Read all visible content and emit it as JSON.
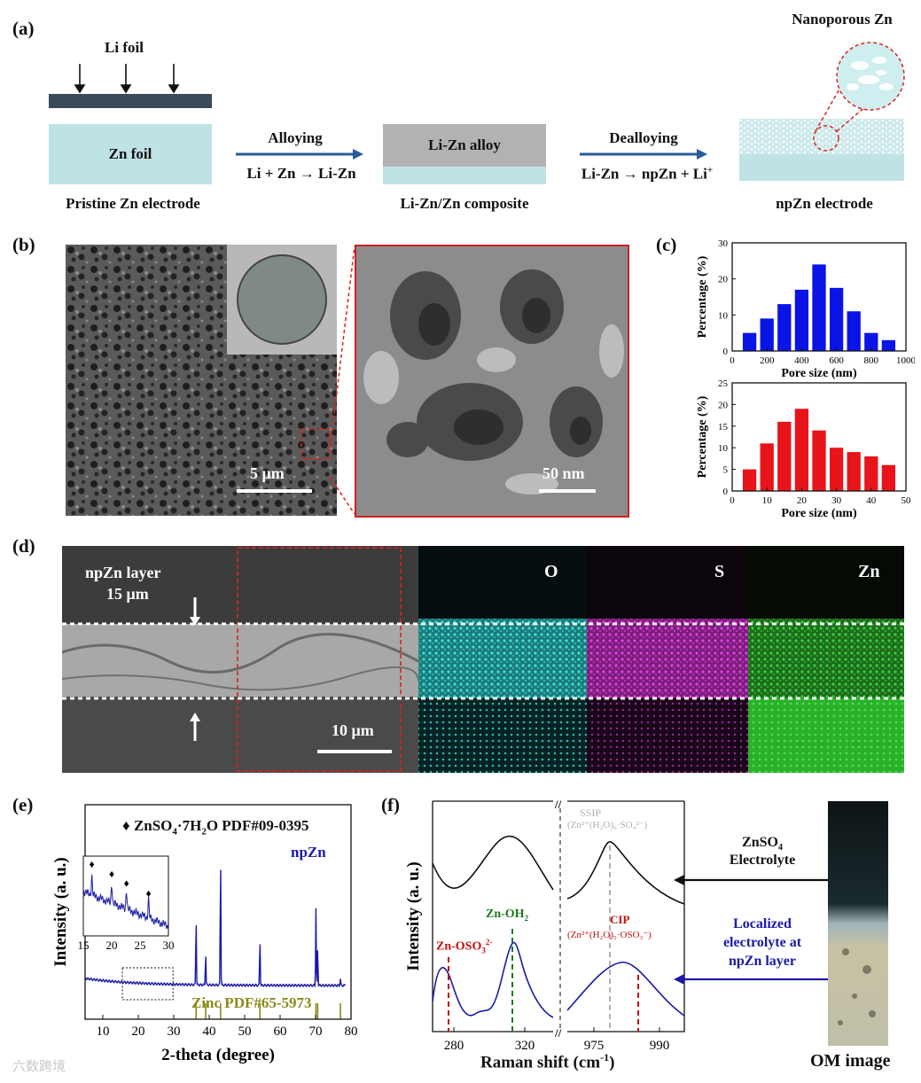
{
  "panels": {
    "a": "(a)",
    "b": "(b)",
    "c": "(c)",
    "d": "(d)",
    "e": "(e)",
    "f": "(f)"
  },
  "a": {
    "li_foil": "Li foil",
    "zn_foil": "Zn foil",
    "pristine": "Pristine Zn electrode",
    "alloying": "Alloying",
    "alloy_rxn": "Li + Zn → Li-Zn",
    "lizn_alloy": "Li-Zn alloy",
    "composite": "Li-Zn/Zn composite",
    "dealloying": "Dealloying",
    "dealloy_rxn": "Li-Zn → npZn + Li",
    "dealloy_rxn_sup": "+",
    "nanoporous": "Nanoporous Zn",
    "npzn_electrode": "npZn electrode"
  },
  "b": {
    "scale1": "5 μm",
    "scale2": "50 nm"
  },
  "c": {
    "colors": {
      "top": "#0a14e6",
      "bottom": "#e8141a"
    },
    "ylabel": "Percentage (%)",
    "chart_data": [
      {
        "type": "bar",
        "xlabel": "Pore size (nm)",
        "ylabel": "Percentage (%)",
        "xlim": [
          0,
          1000
        ],
        "ylim": [
          0,
          30
        ],
        "xticks": [
          0,
          200,
          400,
          600,
          800,
          1000
        ],
        "yticks": [
          0,
          10,
          20,
          30
        ],
        "x": [
          100,
          200,
          300,
          400,
          500,
          600,
          700,
          800,
          900
        ],
        "values": [
          5,
          9,
          13,
          17,
          24,
          17.5,
          11,
          5,
          3
        ]
      },
      {
        "type": "bar",
        "xlabel": "Pore size (nm)",
        "ylabel": "Percentage (%)",
        "xlim": [
          0,
          50
        ],
        "ylim": [
          0,
          25
        ],
        "xticks": [
          0,
          10,
          20,
          30,
          40,
          50
        ],
        "yticks": [
          0,
          5,
          10,
          15,
          20,
          25
        ],
        "x": [
          5,
          10,
          15,
          20,
          25,
          30,
          35,
          40,
          45
        ],
        "values": [
          5,
          11,
          16,
          19,
          14,
          10,
          9,
          8,
          6
        ]
      }
    ]
  },
  "d": {
    "layer": "npZn layer",
    "thickness": "15 μm",
    "scale": "10 μm",
    "O": "O",
    "S": "S",
    "Zn": "Zn"
  },
  "e": {
    "legend_marker": "♦",
    "legend_pre": "ZnSO",
    "legend_sub1": "4",
    "legend_mid": "·7H",
    "legend_sub2": "2",
    "legend_post": "O PDF#09-0395",
    "series": "npZn",
    "zinc_pdf": "Zinc PDF#65-5973",
    "color": "#1a1aa8",
    "pdf_color": "#8a8a1a",
    "chart_data": {
      "type": "line",
      "xlabel": "2-theta (degree)",
      "ylabel": "Intensity (a. u.)",
      "xlim": [
        5,
        80
      ],
      "xticks": [
        10,
        20,
        30,
        40,
        50,
        60,
        70,
        80
      ],
      "peaks": [
        {
          "x": 36.3,
          "h": 0.52
        },
        {
          "x": 39.0,
          "h": 0.25
        },
        {
          "x": 43.2,
          "h": 1.0
        },
        {
          "x": 54.3,
          "h": 0.36
        },
        {
          "x": 70.1,
          "h": 0.56
        },
        {
          "x": 70.6,
          "h": 0.3
        },
        {
          "x": 77.0,
          "h": 0.05
        }
      ],
      "zinc_ref": [
        36.3,
        39.0,
        43.2,
        54.3,
        70.1,
        70.6,
        77.0
      ],
      "inset": {
        "xlim": [
          15,
          30
        ],
        "xticks": [
          15,
          20,
          25,
          30
        ],
        "markers": [
          16.5,
          20.0,
          22.6,
          26.5
        ]
      }
    }
  },
  "f": {
    "ylabel": "Intensity (a. u.)",
    "xlabel": "Raman shift (cm",
    "xlabel_sup": "-1",
    "xlabel_end": ")",
    "ssip": "SSIP",
    "ssip_formula": "(Zn²⁺(H₂O)₆·SO₄²⁻)",
    "cip": "CIP",
    "cip_formula": "(Zn²⁺(H₂O)₅·OSO₃⁻)",
    "zn_oso3": "Zn-OSO",
    "zn_oso3_sub": "3",
    "zn_oso3_sup": "2-",
    "zn_oh2": "Zn-OH",
    "zn_oh2_sub": "2",
    "xticks_left": [
      "280",
      "320"
    ],
    "xticks_right": [
      "975",
      "990"
    ],
    "electrolyte_1": "ZnSO",
    "electrolyte_sub": "4",
    "electrolyte_2": "Electrolyte",
    "local_1": "Localized",
    "local_2": "electrolyte at",
    "local_3": "npZn layer",
    "om": "OM image"
  },
  "watermark": "六数跨境"
}
